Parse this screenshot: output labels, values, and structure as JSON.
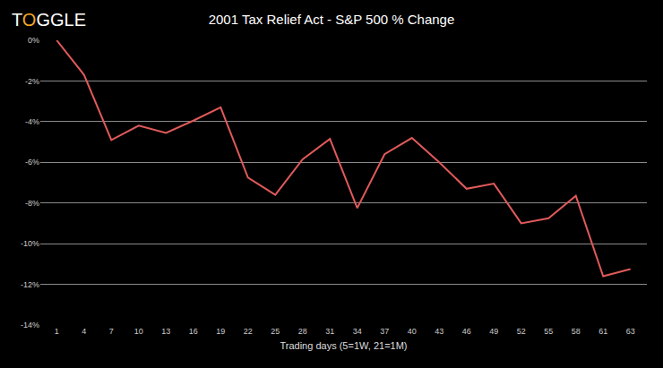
{
  "chart_data": {
    "type": "line",
    "title": "2001 Tax Relief Act - S&P 500 % Change",
    "annotations": [
      "TOGGLE"
    ],
    "x_label": "Trading days (5=1W, 21=1M)",
    "categories": [
      "1",
      "4",
      "7",
      "10",
      "13",
      "16",
      "19",
      "22",
      "25",
      "28",
      "31",
      "34",
      "37",
      "40",
      "43",
      "46",
      "49",
      "52",
      "55",
      "58",
      "61",
      "63"
    ],
    "values": [
      0,
      -1.7,
      -4.9,
      -4.2,
      -4.55,
      -3.95,
      -3.3,
      -6.75,
      -7.6,
      -5.85,
      -4.85,
      -8.25,
      -5.6,
      -4.8,
      -6.0,
      -7.3,
      -7.05,
      -9.0,
      -8.75,
      -7.65,
      -11.6,
      -11.25
    ],
    "color": "#e05a5a",
    "ylim": [
      -14,
      0
    ],
    "yticks": [
      {
        "value": -14,
        "label": "-14%"
      },
      {
        "value": -12,
        "label": "-12%"
      },
      {
        "value": -10,
        "label": "-10%"
      },
      {
        "value": -8,
        "label": "-8%"
      },
      {
        "value": -6,
        "label": "-6%"
      },
      {
        "value": -4,
        "label": "-4%"
      },
      {
        "value": -2,
        "label": "-2%"
      },
      {
        "value": 0,
        "label": "0%"
      }
    ],
    "grid": true
  }
}
